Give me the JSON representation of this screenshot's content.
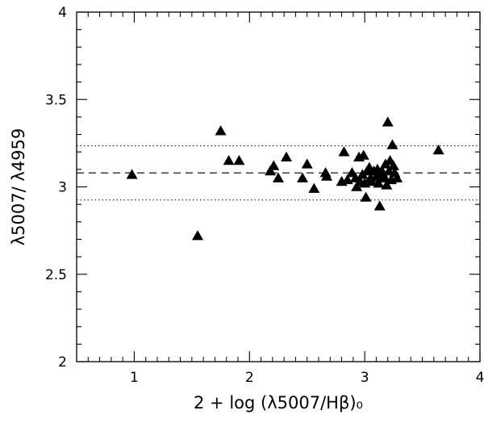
{
  "chart_data": {
    "type": "scatter",
    "title": "",
    "xlabel": "2  +  log (λ5007/Hβ)₀",
    "ylabel": "λ5007/ λ4959",
    "xlim": [
      0.5,
      4.0
    ],
    "ylim": [
      2.0,
      4.0
    ],
    "grid": false,
    "marker": "filled-triangle",
    "x_ticks": [
      {
        "value": 1,
        "label": "1"
      },
      {
        "value": 2,
        "label": "2"
      },
      {
        "value": 3,
        "label": "3"
      },
      {
        "value": 4,
        "label": "4"
      }
    ],
    "y_ticks": [
      {
        "value": 2.0,
        "label": "2"
      },
      {
        "value": 2.5,
        "label": "2.5"
      },
      {
        "value": 3.0,
        "label": "3"
      },
      {
        "value": 3.5,
        "label": "3.5"
      },
      {
        "value": 4.0,
        "label": "4"
      }
    ],
    "reference_lines": [
      {
        "style": "dashed",
        "y": 3.08
      },
      {
        "style": "dotted",
        "y": 3.235
      },
      {
        "style": "dotted",
        "y": 2.925
      }
    ],
    "series": [
      {
        "points": [
          [
            0.98,
            3.07
          ],
          [
            1.55,
            2.72
          ],
          [
            1.75,
            3.32
          ],
          [
            1.82,
            3.15
          ],
          [
            1.91,
            3.15
          ],
          [
            2.18,
            3.09
          ],
          [
            2.21,
            3.12
          ],
          [
            2.25,
            3.05
          ],
          [
            2.32,
            3.17
          ],
          [
            2.46,
            3.05
          ],
          [
            2.5,
            3.13
          ],
          [
            2.56,
            2.99
          ],
          [
            2.66,
            3.08
          ],
          [
            2.67,
            3.06
          ],
          [
            2.8,
            3.03
          ],
          [
            2.82,
            3.2
          ],
          [
            2.85,
            3.04
          ],
          [
            2.89,
            3.08
          ],
          [
            2.92,
            3.05
          ],
          [
            2.93,
            3.0
          ],
          [
            2.95,
            3.17
          ],
          [
            2.96,
            3.03
          ],
          [
            2.98,
            3.07
          ],
          [
            2.99,
            3.18
          ],
          [
            3.0,
            3.02
          ],
          [
            3.01,
            2.94
          ],
          [
            3.02,
            3.09
          ],
          [
            3.04,
            3.11
          ],
          [
            3.05,
            3.05
          ],
          [
            3.06,
            3.03
          ],
          [
            3.08,
            3.09
          ],
          [
            3.1,
            3.06
          ],
          [
            3.11,
            3.1
          ],
          [
            3.12,
            3.02
          ],
          [
            3.13,
            2.89
          ],
          [
            3.14,
            3.05
          ],
          [
            3.15,
            3.09
          ],
          [
            3.16,
            3.07
          ],
          [
            3.17,
            3.05
          ],
          [
            3.18,
            3.13
          ],
          [
            3.19,
            3.01
          ],
          [
            3.2,
            3.37
          ],
          [
            3.21,
            3.09
          ],
          [
            3.22,
            3.15
          ],
          [
            3.23,
            3.04
          ],
          [
            3.24,
            3.24
          ],
          [
            3.25,
            3.12
          ],
          [
            3.26,
            3.08
          ],
          [
            3.28,
            3.05
          ],
          [
            3.64,
            3.21
          ]
        ]
      }
    ]
  }
}
